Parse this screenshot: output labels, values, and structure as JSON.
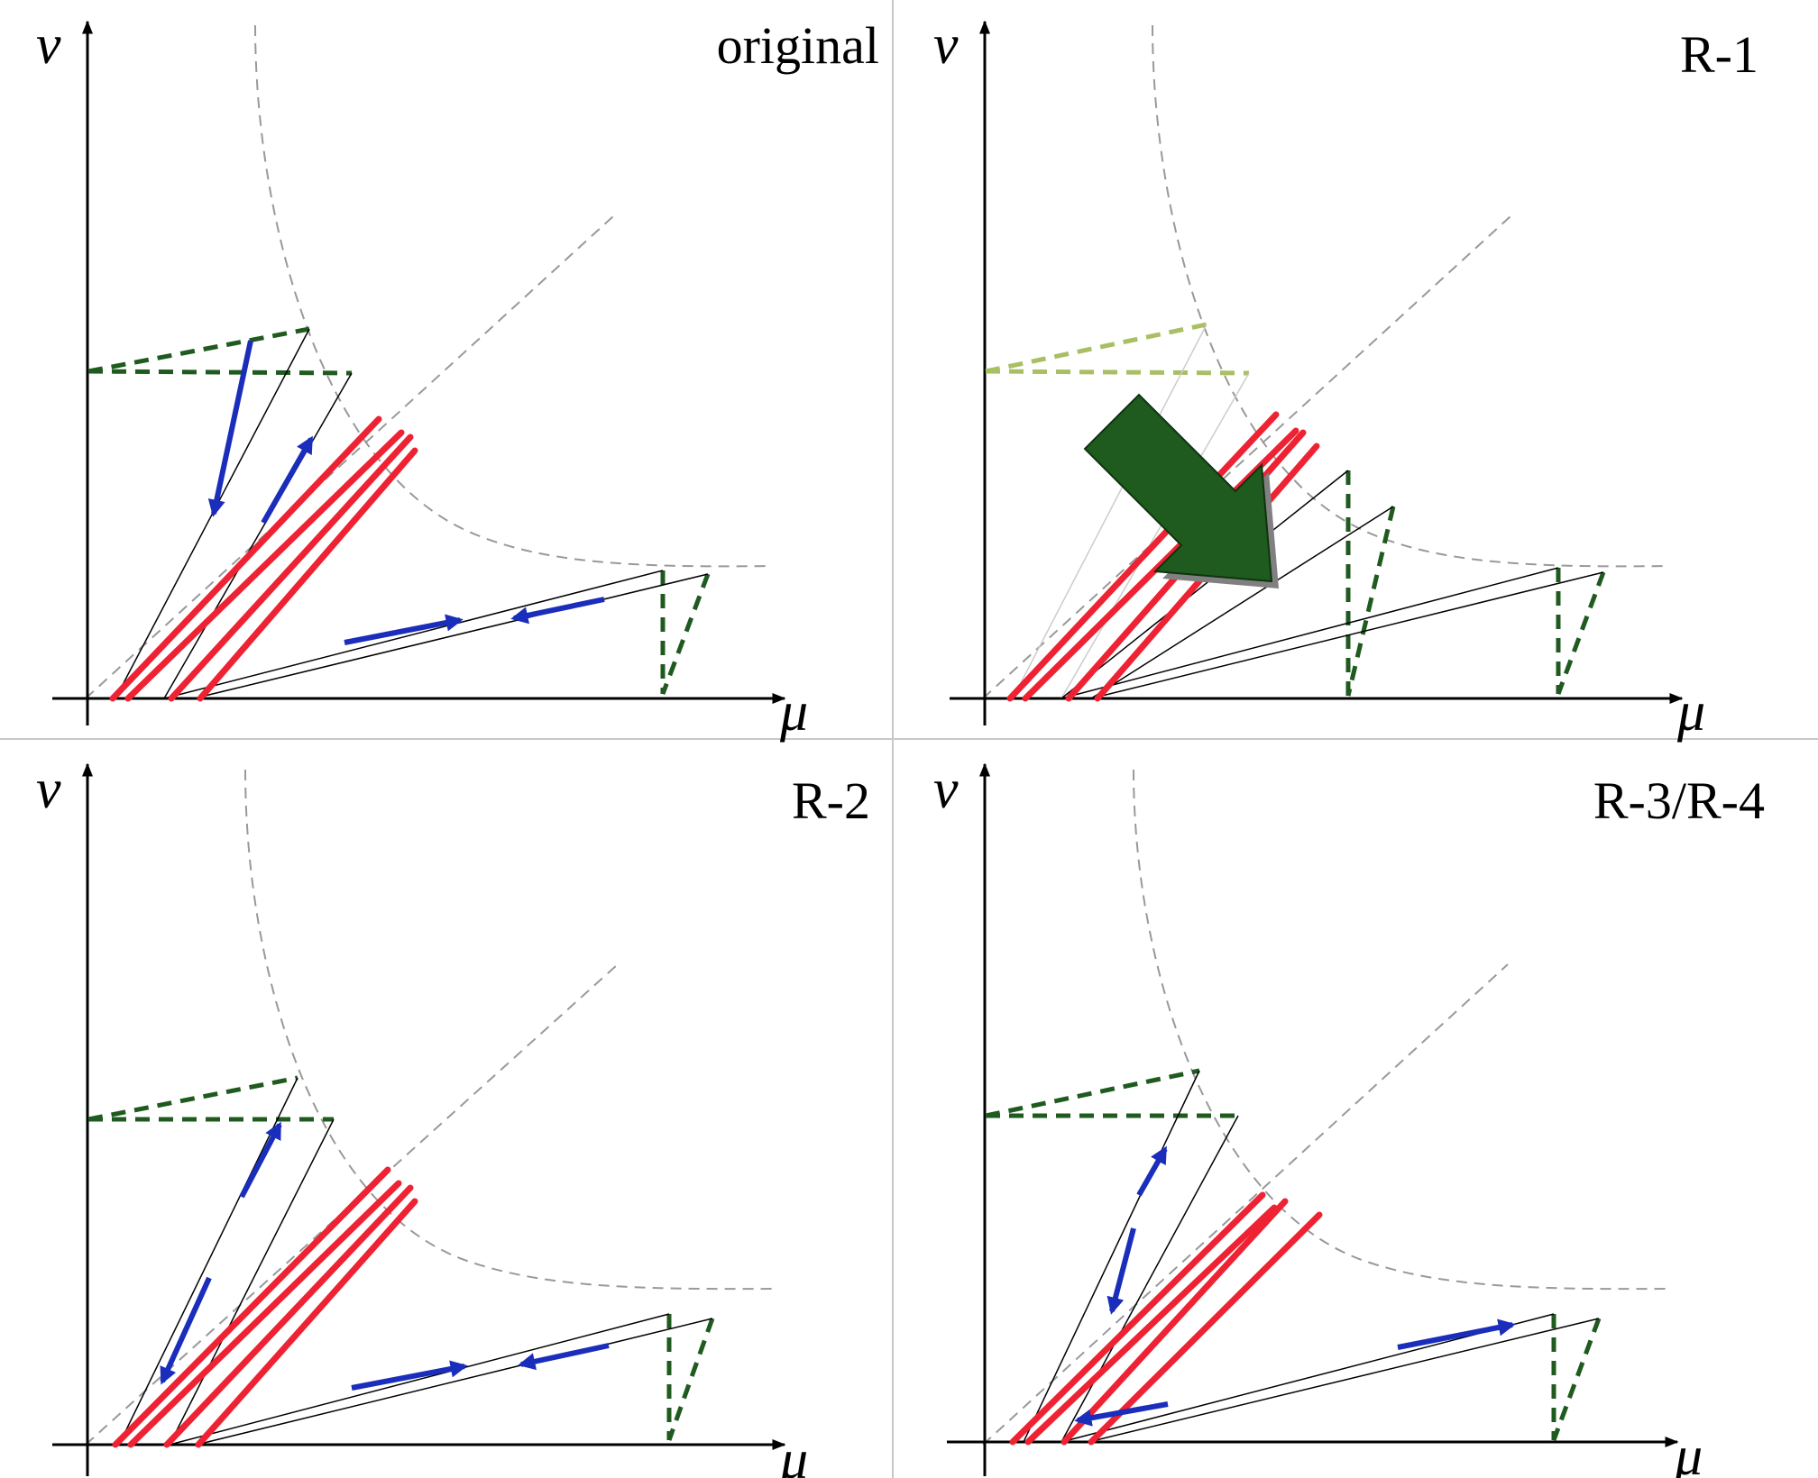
{
  "figure": {
    "panels": [
      {
        "id": "original",
        "label": "original",
        "x_axis_label": "μ",
        "y_axis_label": "ν"
      },
      {
        "id": "r1",
        "label": "R-1",
        "x_axis_label": "μ",
        "y_axis_label": "ν"
      },
      {
        "id": "r2",
        "label": "R-2",
        "x_axis_label": "μ",
        "y_axis_label": "ν"
      },
      {
        "id": "r34",
        "label": "R-3/R-4",
        "x_axis_label": "μ",
        "y_axis_label": "ν"
      }
    ]
  },
  "colors": {
    "axis": "#000000",
    "red_lines": "#ee2233",
    "blue_arrows": "#1a2dbb",
    "green_dashed": "#1f5a1f",
    "light_green_dashed": "#a8bf63",
    "big_arrow": "#1f5a1f",
    "guide_dashed": "#999999",
    "divider": "#c8c8c8"
  }
}
